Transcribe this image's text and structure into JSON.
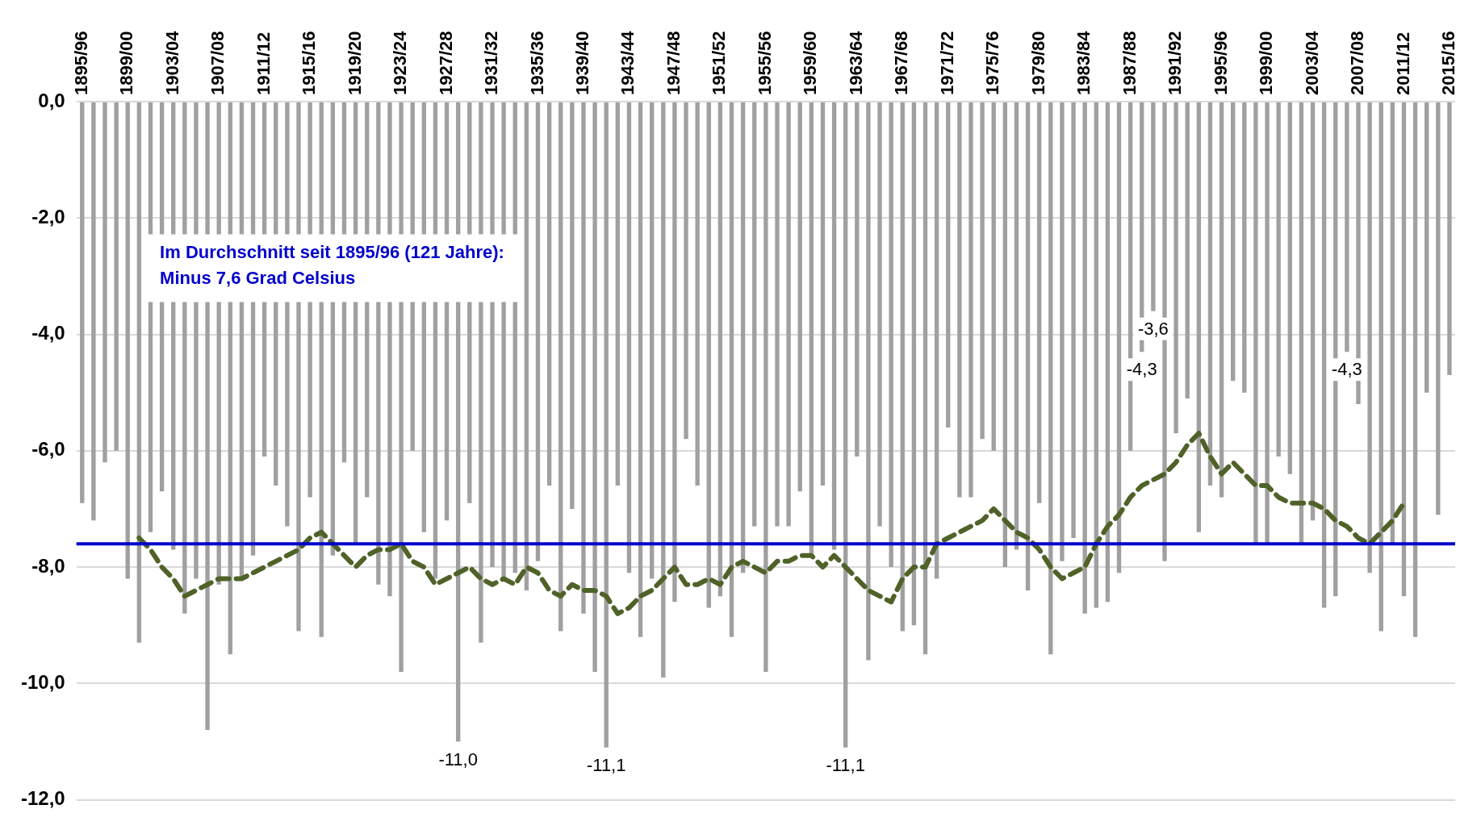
{
  "chart_data": {
    "type": "bar",
    "categories": [
      "1895/96",
      null,
      null,
      null,
      "1899/00",
      null,
      null,
      null,
      "1903/04",
      null,
      null,
      null,
      "1907/08",
      null,
      null,
      null,
      "1911/12",
      null,
      null,
      null,
      "1915/16",
      null,
      null,
      null,
      "1919/20",
      null,
      null,
      null,
      "1923/24",
      null,
      null,
      null,
      "1927/28",
      null,
      null,
      null,
      "1931/32",
      null,
      null,
      null,
      "1935/36",
      null,
      null,
      null,
      "1939/40",
      null,
      null,
      null,
      "1943/44",
      null,
      null,
      null,
      "1947/48",
      null,
      null,
      null,
      "1951/52",
      null,
      null,
      null,
      "1955/56",
      null,
      null,
      null,
      "1959/60",
      null,
      null,
      null,
      "1963/64",
      null,
      null,
      null,
      "1967/68",
      null,
      null,
      null,
      "1971/72",
      null,
      null,
      null,
      "1975/76",
      null,
      null,
      null,
      "1979/80",
      null,
      null,
      null,
      "1983/84",
      null,
      null,
      null,
      "1987/88",
      null,
      null,
      null,
      "1991/92",
      null,
      null,
      null,
      "1995/96",
      null,
      null,
      null,
      "1999/00",
      null,
      null,
      null,
      "2003/04",
      null,
      null,
      null,
      "2007/08",
      null,
      null,
      null,
      "2011/12",
      null,
      null,
      null,
      "2015/16"
    ],
    "series": [
      {
        "color": "#a0a0a0",
        "values": [
          -6.9,
          -7.2,
          -6.2,
          -6.0,
          -8.2,
          -9.3,
          -7.4,
          -6.7,
          -7.7,
          -8.8,
          -8.2,
          -10.8,
          -8.3,
          -9.5,
          -8.2,
          -7.8,
          -6.1,
          -6.6,
          -7.3,
          -9.1,
          -6.8,
          -9.2,
          -7.8,
          -6.2,
          -7.6,
          -6.8,
          -8.3,
          -8.5,
          -9.8,
          -6.0,
          -7.4,
          -8.2,
          -7.2,
          -11.0,
          -6.9,
          -9.3,
          -8.0,
          -8.2,
          -8.1,
          -8.4,
          -7.9,
          -6.6,
          -9.1,
          -7.0,
          -8.8,
          -9.8,
          -11.1,
          -6.6,
          -8.1,
          -9.2,
          -8.2,
          -9.9,
          -8.6,
          -5.8,
          -6.6,
          -8.7,
          -8.5,
          -9.2,
          -8.1,
          -7.3,
          -9.8,
          -7.3,
          -7.3,
          -6.7,
          -7.8,
          -6.6,
          -7.7,
          -11.1,
          -6.1,
          -9.6,
          -7.3,
          -8.0,
          -9.1,
          -9.0,
          -9.5,
          -8.2,
          -5.6,
          -6.8,
          -6.8,
          -5.8,
          -6.0,
          -8.0,
          -7.7,
          -8.4,
          -6.9,
          -9.5,
          -7.9,
          -7.5,
          -8.8,
          -8.7,
          -8.6,
          -8.1,
          -6.0,
          -4.3,
          -3.6,
          -7.9,
          -5.7,
          -5.1,
          -7.4,
          -6.6,
          -6.8,
          -4.8,
          -5.0,
          -7.6,
          -7.6,
          -6.1,
          -6.4,
          -7.6,
          -7.2,
          -8.7,
          -8.5,
          -4.3,
          -5.2,
          -8.1,
          -9.1,
          -7.6,
          -8.5,
          -9.2,
          -5.0,
          -7.1,
          -4.7
        ],
        "value_labels": [
          null,
          null,
          null,
          null,
          null,
          null,
          null,
          null,
          null,
          null,
          null,
          null,
          null,
          null,
          null,
          null,
          null,
          null,
          null,
          null,
          null,
          null,
          null,
          null,
          null,
          null,
          null,
          null,
          null,
          null,
          null,
          null,
          null,
          "-11,0",
          null,
          null,
          null,
          null,
          null,
          null,
          null,
          null,
          null,
          null,
          null,
          null,
          "-11,1",
          null,
          null,
          null,
          null,
          null,
          null,
          null,
          null,
          null,
          null,
          null,
          null,
          null,
          null,
          null,
          null,
          null,
          null,
          null,
          null,
          "-11,1",
          null,
          null,
          null,
          null,
          null,
          null,
          null,
          null,
          null,
          null,
          null,
          null,
          null,
          null,
          null,
          null,
          null,
          null,
          null,
          null,
          null,
          null,
          null,
          null,
          null,
          "-4,3",
          "-3,6",
          null,
          null,
          null,
          null,
          null,
          null,
          null,
          null,
          null,
          null,
          null,
          null,
          null,
          null,
          null,
          null,
          "-4,3",
          null,
          null,
          null,
          null,
          null,
          null,
          null,
          null,
          null
        ]
      },
      {
        "type": "line",
        "color": "#4f6228",
        "line_style": "dashed",
        "values": [
          null,
          null,
          null,
          null,
          null,
          -7.5,
          -7.7,
          -8.0,
          -8.2,
          -8.5,
          -8.4,
          -8.3,
          -8.2,
          -8.2,
          -8.2,
          -8.1,
          -8.0,
          -7.9,
          -7.8,
          -7.7,
          -7.5,
          -7.4,
          -7.6,
          -7.8,
          -8.0,
          -7.8,
          -7.7,
          -7.7,
          -7.6,
          -7.9,
          -8.0,
          -8.3,
          -8.2,
          -8.1,
          -8.0,
          -8.2,
          -8.3,
          -8.2,
          -8.3,
          -8.0,
          -8.1,
          -8.4,
          -8.5,
          -8.3,
          -8.4,
          -8.4,
          -8.5,
          -8.8,
          -8.7,
          -8.5,
          -8.4,
          -8.2,
          -8.0,
          -8.3,
          -8.3,
          -8.2,
          -8.3,
          -8.0,
          -7.9,
          -8.0,
          -8.1,
          -7.9,
          -7.9,
          -7.8,
          -7.8,
          -8.0,
          -7.8,
          -8.0,
          -8.2,
          -8.4,
          -8.5,
          -8.6,
          -8.2,
          -8.0,
          -8.0,
          -7.6,
          -7.5,
          -7.4,
          -7.3,
          -7.2,
          -7.0,
          -7.2,
          -7.4,
          -7.5,
          -7.7,
          -8.0,
          -8.2,
          -8.1,
          -8.0,
          -7.6,
          -7.3,
          -7.1,
          -6.8,
          -6.6,
          -6.5,
          -6.4,
          -6.2,
          -5.9,
          -5.7,
          -6.1,
          -6.4,
          -6.2,
          -6.4,
          -6.6,
          -6.6,
          -6.8,
          -6.9,
          -6.9,
          -6.9,
          -7.0,
          -7.2,
          -7.3,
          -7.5,
          -7.6,
          -7.4,
          -7.2,
          -6.9,
          null,
          null,
          null,
          null
        ]
      }
    ],
    "ylim": [
      -12,
      0
    ],
    "yticks": [
      {
        "value": 0,
        "label": "0,0"
      },
      {
        "value": -2,
        "label": "-2,0"
      },
      {
        "value": -4,
        "label": "-4,0"
      },
      {
        "value": -6,
        "label": "-6,0"
      },
      {
        "value": -8,
        "label": "-8,0"
      },
      {
        "value": -10,
        "label": "-10,0"
      },
      {
        "value": -12,
        "label": "-12,0"
      }
    ],
    "ref_lines": [
      {
        "axis": "y",
        "value": -7.6,
        "color": "#0000cc",
        "label": "Im Durchschnitt seit 1895/96 (121 Jahre):\nMinus 7,6 Grad Celsius"
      }
    ],
    "grid": "y",
    "legend": false,
    "marker": "none"
  }
}
